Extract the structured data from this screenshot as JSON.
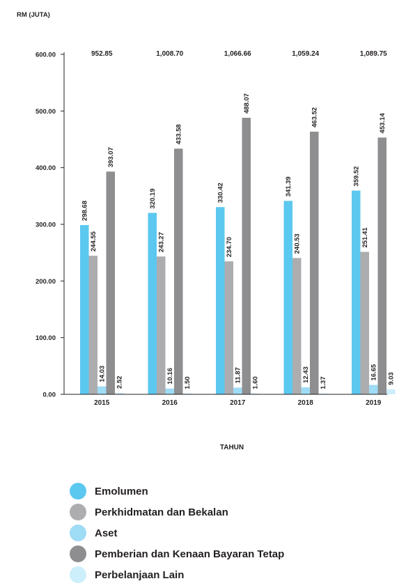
{
  "chart_data": {
    "type": "bar",
    "ylabel": "RM (JUTA)",
    "xlabel": "TAHUN",
    "ylim": [
      0,
      600
    ],
    "yticks": [
      "0.00",
      "100.00",
      "200.00",
      "300.00",
      "400.00",
      "500.00",
      "600.00"
    ],
    "categories": [
      "2015",
      "2016",
      "2017",
      "2018",
      "2019"
    ],
    "totals": [
      "952.85",
      "1,008.70",
      "1,066.66",
      "1,059.24",
      "1,089.75"
    ],
    "series": [
      {
        "name": "Emolumen",
        "color": "#5bc8f0",
        "values": [
          298.68,
          320.19,
          330.42,
          341.39,
          359.52
        ],
        "labels": [
          "298.68",
          "320.19",
          "330.42",
          "341.39",
          "359.52"
        ]
      },
      {
        "name": "Perkhidmatan dan Bekalan",
        "color": "#adadb0",
        "values": [
          244.55,
          243.27,
          234.7,
          240.53,
          251.41
        ],
        "labels": [
          "244.55",
          "243.27",
          "234.70",
          "240.53",
          "251.41"
        ]
      },
      {
        "name": "Aset",
        "color": "#9fdcf5",
        "values": [
          14.03,
          10.16,
          11.87,
          12.43,
          16.65
        ],
        "labels": [
          "14.03",
          "10.16",
          "11.87",
          "12.43",
          "16.65"
        ]
      },
      {
        "name": "Pemberian dan Kenaan Bayaran Tetap",
        "color": "#8e8e90",
        "values": [
          393.07,
          433.58,
          488.07,
          463.52,
          453.14
        ],
        "labels": [
          "393.07",
          "433.58",
          "488.07",
          "463.52",
          "453.14"
        ]
      },
      {
        "name": "Perbelanjaan Lain",
        "color": "#cdeefb",
        "values": [
          2.52,
          1.5,
          1.6,
          1.37,
          9.03
        ],
        "labels": [
          "2.52",
          "1.50",
          "1.60",
          "1.37",
          "9.03"
        ]
      }
    ]
  }
}
